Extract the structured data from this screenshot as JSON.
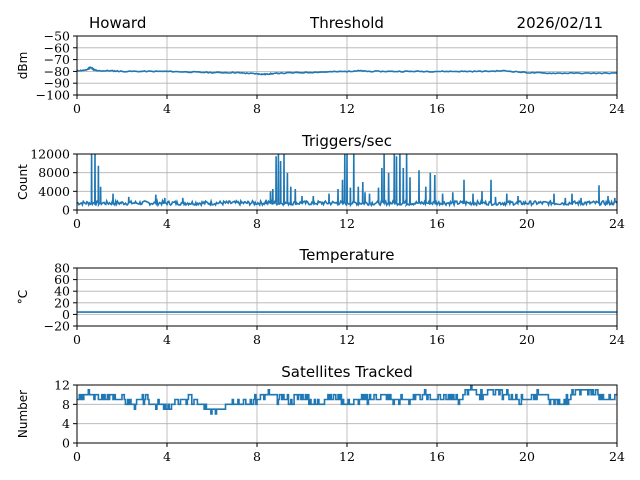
{
  "header": {
    "station": "Howard",
    "date": "2026/02/11"
  },
  "style": {
    "line_color": "#1f77b4",
    "grid_color": "#b0b0b0"
  },
  "chart_data": [
    {
      "id": "threshold",
      "type": "line",
      "title": "Threshold",
      "ylabel": "dBm",
      "xlim": [
        0,
        24
      ],
      "ylim": [
        -100,
        -50
      ],
      "xticks": [
        0,
        4,
        8,
        12,
        16,
        20,
        24
      ],
      "yticks": [
        -100,
        -90,
        -80,
        -70,
        -60,
        -50
      ],
      "ytick_labels": [
        "−100",
        "−90",
        "−80",
        "−70",
        "−60",
        "−50"
      ],
      "series": [
        {
          "name": "Threshold",
          "x": [
            0,
            0.4,
            0.6,
            0.75,
            0.9,
            1.5,
            2,
            3,
            4,
            5,
            6,
            7,
            7.5,
            8,
            8.3,
            8.6,
            9,
            10,
            11,
            12,
            12.5,
            13,
            14,
            15,
            16,
            17,
            18,
            19,
            20,
            21,
            22,
            23,
            24
          ],
          "y": [
            -79.5,
            -79,
            -76.5,
            -78.5,
            -79.5,
            -79.5,
            -80,
            -80,
            -80,
            -80.5,
            -81,
            -81,
            -81.5,
            -82,
            -82.5,
            -82,
            -81.5,
            -81,
            -80.5,
            -80,
            -79.5,
            -80,
            -80,
            -80,
            -80,
            -80,
            -80,
            -79.5,
            -81,
            -81.5,
            -81.5,
            -81.5,
            -81.5
          ]
        }
      ]
    },
    {
      "id": "triggers",
      "type": "line",
      "title": "Triggers/sec",
      "ylabel": "Count",
      "xlim": [
        0,
        24
      ],
      "ylim": [
        0,
        12000
      ],
      "xticks": [
        0,
        4,
        8,
        12,
        16,
        20,
        24
      ],
      "yticks": [
        0,
        4000,
        8000,
        12000
      ],
      "ytick_labels": [
        "0",
        "4000",
        "8000",
        "12000"
      ],
      "series": [
        {
          "name": "Triggers/sec",
          "baseline": 1500,
          "spikes": [
            [
              0.65,
              12000
            ],
            [
              0.8,
              12000
            ],
            [
              0.95,
              9500
            ],
            [
              1.05,
              5000
            ],
            [
              1.6,
              3500
            ],
            [
              2.3,
              2800
            ],
            [
              3.5,
              3300
            ],
            [
              3.9,
              2600
            ],
            [
              4.7,
              2600
            ],
            [
              8.4,
              2200
            ],
            [
              8.6,
              4000
            ],
            [
              8.7,
              4500
            ],
            [
              8.85,
              11500
            ],
            [
              8.95,
              12000
            ],
            [
              9.05,
              10500
            ],
            [
              9.2,
              12000
            ],
            [
              9.35,
              8000
            ],
            [
              9.5,
              5000
            ],
            [
              9.7,
              4500
            ],
            [
              10,
              3000
            ],
            [
              10.5,
              3000
            ],
            [
              11.2,
              3500
            ],
            [
              11.6,
              4500
            ],
            [
              11.8,
              6500
            ],
            [
              11.9,
              12000
            ],
            [
              12.0,
              12000
            ],
            [
              12.15,
              4800
            ],
            [
              12.3,
              12000
            ],
            [
              12.5,
              5000
            ],
            [
              12.7,
              6000
            ],
            [
              12.8,
              3800
            ],
            [
              13.0,
              3500
            ],
            [
              13.4,
              4800
            ],
            [
              13.55,
              9000
            ],
            [
              13.65,
              12000
            ],
            [
              13.85,
              8000
            ],
            [
              14.1,
              12000
            ],
            [
              14.2,
              11500
            ],
            [
              14.35,
              12000
            ],
            [
              14.5,
              9000
            ],
            [
              14.65,
              12000
            ],
            [
              14.8,
              7000
            ],
            [
              15.2,
              8500
            ],
            [
              15.5,
              5000
            ],
            [
              15.7,
              8000
            ],
            [
              15.9,
              7500
            ],
            [
              16.25,
              3500
            ],
            [
              16.7,
              3800
            ],
            [
              17.2,
              6500
            ],
            [
              17.6,
              3500
            ],
            [
              18.0,
              4000
            ],
            [
              18.4,
              6500
            ],
            [
              18.6,
              2800
            ],
            [
              19.1,
              3500
            ],
            [
              19.6,
              3000
            ],
            [
              21.2,
              3500
            ],
            [
              21.7,
              2600
            ],
            [
              22.0,
              3500
            ],
            [
              22.4,
              2600
            ],
            [
              23.2,
              5300
            ],
            [
              23.6,
              3000
            ],
            [
              23.9,
              2600
            ]
          ]
        }
      ]
    },
    {
      "id": "temperature",
      "type": "line",
      "title": "Temperature",
      "ylabel": "°C",
      "xlim": [
        0,
        24
      ],
      "ylim": [
        -20,
        80
      ],
      "xticks": [
        0,
        4,
        8,
        12,
        16,
        20,
        24
      ],
      "yticks": [
        -20,
        0,
        20,
        40,
        60,
        80
      ],
      "ytick_labels": [
        "−20",
        "0",
        "20",
        "40",
        "60",
        "80"
      ],
      "series": [
        {
          "name": "Temperature",
          "x": [
            0,
            24
          ],
          "y": [
            4,
            4
          ]
        }
      ]
    },
    {
      "id": "satellites",
      "type": "line",
      "title": "Satellites Tracked",
      "ylabel": "Number",
      "xlim": [
        0,
        24
      ],
      "ylim": [
        0,
        12
      ],
      "xticks": [
        0,
        4,
        8,
        12,
        16,
        20,
        24
      ],
      "yticks": [
        0,
        4,
        8,
        12
      ],
      "ytick_labels": [
        "0",
        "4",
        "8",
        "12"
      ],
      "series": [
        {
          "name": "Satellites",
          "x": [
            0,
            0.5,
            1,
            1.5,
            2,
            2.5,
            3,
            3.5,
            4,
            4.5,
            5,
            5.5,
            6,
            6.5,
            7,
            7.5,
            8,
            8.5,
            9,
            9.5,
            10,
            10.5,
            11,
            11.5,
            12,
            12.5,
            13,
            13.5,
            14,
            14.5,
            15,
            15.5,
            16,
            16.5,
            17,
            17.5,
            18,
            18.5,
            19,
            19.5,
            20,
            20.5,
            21,
            21.5,
            22,
            22.5,
            23,
            23.5,
            24
          ],
          "y": [
            9,
            10,
            9,
            10,
            9,
            8,
            9,
            8,
            7,
            9,
            9,
            8,
            6,
            8,
            9,
            8,
            9,
            10,
            9,
            9,
            10,
            8,
            9,
            10,
            8,
            9,
            9,
            10,
            9,
            9,
            9,
            10,
            9,
            10,
            9,
            11,
            10,
            11,
            10,
            9,
            9,
            10,
            9,
            8,
            10,
            11,
            10,
            9,
            9
          ]
        }
      ]
    }
  ]
}
